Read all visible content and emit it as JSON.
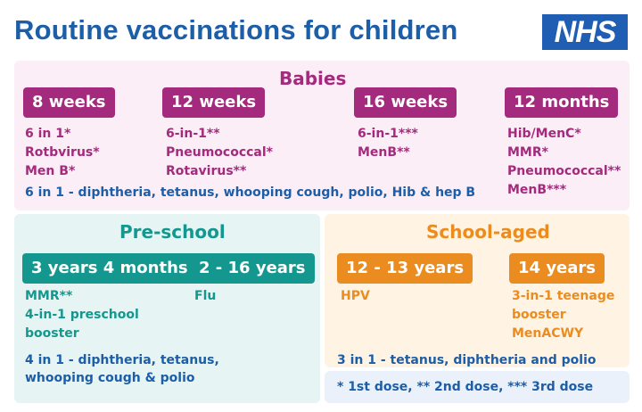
{
  "title": "Routine vaccinations for children",
  "logo": "NHS",
  "colors": {
    "pink": "#a32a7d",
    "teal": "#14978e",
    "orange": "#ea8c1f",
    "blue": "#1d5ea8"
  },
  "babies": {
    "title": "Babies",
    "groups": [
      {
        "age": "8 weeks",
        "items": [
          "6 in 1*",
          "Rotbvirus*",
          "Men B*"
        ]
      },
      {
        "age": "12 weeks",
        "items": [
          "6-in-1**",
          "Pneumococcal*",
          "Rotavirus**"
        ]
      },
      {
        "age": "16 weeks",
        "items": [
          "6-in-1***",
          "MenB**"
        ]
      },
      {
        "age": "12 months",
        "items": [
          "Hib/MenC*",
          "MMR*",
          "Pneumococcal**",
          "MenB***"
        ]
      }
    ],
    "note": "6 in 1 - diphtheria, tetanus, whooping cough, polio, Hib & hep B"
  },
  "preschool": {
    "title": "Pre-school",
    "groups": [
      {
        "age": "3 years 4 months",
        "items": [
          "MMR**",
          "4-in-1 preschool",
          "booster"
        ]
      },
      {
        "age": "2 - 16 years",
        "items": [
          "Flu"
        ]
      }
    ],
    "note_lines": [
      "4 in 1 - diphtheria, tetanus,",
      "whooping cough & polio"
    ]
  },
  "school_aged": {
    "title": "School-aged",
    "groups": [
      {
        "age": "12 - 13 years",
        "items": [
          "HPV"
        ]
      },
      {
        "age": "14 years",
        "items": [
          "3-in-1 teenage",
          "booster",
          "MenACWY"
        ]
      }
    ],
    "note": "3 in 1 - tetanus, diphtheria and polio"
  },
  "footnote": "* 1st dose, ** 2nd dose, *** 3rd dose"
}
